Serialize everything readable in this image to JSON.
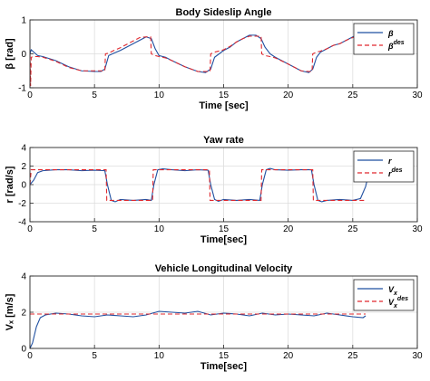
{
  "chart_data": [
    {
      "type": "line",
      "title": "Body Sideslip Angle",
      "xlabel": "Time [sec]",
      "ylabel": "β [rad]",
      "xlim": [
        0,
        30
      ],
      "ylim": [
        -1,
        1
      ],
      "xticks": [
        "0",
        "5",
        "10",
        "15",
        "20",
        "25",
        "30"
      ],
      "yticks": [
        "-1",
        "0",
        "1"
      ],
      "grid": true,
      "legend_position": "top-right",
      "legend": [
        {
          "name": "β",
          "sub": "",
          "sup": ""
        },
        {
          "name": "β",
          "sub": "",
          "sup": "des"
        }
      ],
      "series": [
        {
          "name": "β",
          "color": "#1f4fa0",
          "style": "solid",
          "x": [
            0,
            0.1,
            0.3,
            0.6,
            1.0,
            2.0,
            3.0,
            4.0,
            5.0,
            5.5,
            5.8,
            6.1,
            6.5,
            7.0,
            7.5,
            8.0,
            8.5,
            9.0,
            9.4,
            9.7,
            10.0,
            10.5,
            11.0,
            12.0,
            13.0,
            13.6,
            14.0,
            14.3,
            15.0,
            15.5,
            16.0,
            16.5,
            17.0,
            17.5,
            17.9,
            18.2,
            18.6,
            19.0,
            20.0,
            21.0,
            21.6,
            21.9,
            22.2,
            22.5,
            23.0,
            23.5,
            24.0,
            24.5,
            25.0,
            25.5,
            25.8,
            26.0
          ],
          "y": [
            0.0,
            0.12,
            0.05,
            -0.05,
            -0.08,
            -0.2,
            -0.38,
            -0.5,
            -0.52,
            -0.52,
            -0.45,
            -0.05,
            0.02,
            0.1,
            0.2,
            0.3,
            0.4,
            0.5,
            0.45,
            0.15,
            -0.05,
            -0.1,
            -0.2,
            -0.38,
            -0.52,
            -0.55,
            -0.45,
            -0.1,
            0.1,
            0.2,
            0.35,
            0.45,
            0.55,
            0.55,
            0.45,
            0.2,
            0.0,
            -0.1,
            -0.3,
            -0.5,
            -0.55,
            -0.45,
            -0.1,
            0.05,
            0.15,
            0.25,
            0.3,
            0.4,
            0.5,
            0.6,
            0.5,
            0.05
          ]
        },
        {
          "name": "βdes",
          "color": "#e0282e",
          "style": "dashed",
          "x": [
            0,
            0.05,
            0.1,
            0.3,
            0.6,
            1.0,
            2.0,
            3.0,
            4.0,
            5.0,
            5.5,
            5.8,
            5.85,
            6.1,
            6.5,
            7.0,
            7.5,
            8.0,
            8.5,
            9.0,
            9.35,
            9.4,
            9.7,
            10.0,
            10.5,
            11.0,
            12.0,
            13.0,
            13.6,
            13.95,
            14.0,
            14.3,
            15.0,
            15.5,
            16.0,
            16.5,
            17.0,
            17.5,
            17.9,
            17.95,
            18.2,
            18.6,
            19.0,
            20.0,
            21.0,
            21.6,
            21.85,
            21.9,
            22.2,
            22.5,
            23.0,
            23.5,
            24.0,
            24.5,
            25.0,
            25.5,
            25.8,
            26.0
          ],
          "y": [
            0.0,
            -0.95,
            -0.1,
            -0.08,
            -0.08,
            -0.1,
            -0.22,
            -0.4,
            -0.5,
            -0.5,
            -0.5,
            -0.5,
            0.0,
            0.02,
            0.1,
            0.18,
            0.28,
            0.38,
            0.48,
            0.5,
            0.5,
            0.0,
            -0.05,
            -0.08,
            -0.12,
            -0.2,
            -0.38,
            -0.52,
            -0.52,
            -0.52,
            0.0,
            0.05,
            0.12,
            0.22,
            0.35,
            0.45,
            0.52,
            0.52,
            0.52,
            0.0,
            -0.05,
            -0.08,
            -0.12,
            -0.3,
            -0.5,
            -0.52,
            -0.52,
            0.0,
            0.05,
            0.08,
            0.15,
            0.25,
            0.3,
            0.4,
            0.48,
            0.55,
            0.55,
            0.0
          ]
        }
      ]
    },
    {
      "type": "line",
      "title": "Yaw rate",
      "xlabel": "Time[sec]",
      "ylabel": "r [rad/s]",
      "xlim": [
        0,
        30
      ],
      "ylim": [
        -4,
        4
      ],
      "xticks": [
        "0",
        "5",
        "10",
        "15",
        "20",
        "25",
        "30"
      ],
      "yticks": [
        "-4",
        "-2",
        "0",
        "2",
        "4"
      ],
      "grid": true,
      "legend_position": "top-right",
      "legend": [
        {
          "name": "r",
          "sub": "",
          "sup": ""
        },
        {
          "name": "r",
          "sub": "",
          "sup": "des"
        }
      ],
      "series": [
        {
          "name": "r",
          "color": "#1f4fa0",
          "style": "solid",
          "x": [
            0,
            0.3,
            0.6,
            1.0,
            2.0,
            3.0,
            4.0,
            5.0,
            5.8,
            6.0,
            6.3,
            6.6,
            7.0,
            8.0,
            9.0,
            9.4,
            9.6,
            9.9,
            10.3,
            11.0,
            12.0,
            13.0,
            13.8,
            14.0,
            14.3,
            14.6,
            15.0,
            16.0,
            17.0,
            17.8,
            18.0,
            18.3,
            18.6,
            19.0,
            20.0,
            21.0,
            21.8,
            22.0,
            22.3,
            22.6,
            23.0,
            24.0,
            25.0,
            25.6,
            26.0,
            26.2
          ],
          "y": [
            0.0,
            0.5,
            1.3,
            1.5,
            1.6,
            1.6,
            1.5,
            1.55,
            1.5,
            0.0,
            -1.7,
            -1.85,
            -1.6,
            -1.7,
            -1.6,
            -1.7,
            0.0,
            1.6,
            1.7,
            1.6,
            1.5,
            1.6,
            1.55,
            0.0,
            -1.6,
            -1.8,
            -1.6,
            -1.7,
            -1.6,
            -1.7,
            0.0,
            1.6,
            1.75,
            1.6,
            1.55,
            1.6,
            1.6,
            0.0,
            -1.7,
            -1.85,
            -1.7,
            -1.6,
            -1.7,
            -1.5,
            -0.2,
            1.0
          ]
        },
        {
          "name": "rdes",
          "color": "#e0282e",
          "style": "dashed",
          "x": [
            0,
            0.1,
            1.0,
            2.0,
            3.0,
            4.0,
            5.0,
            5.9,
            5.95,
            7.0,
            8.0,
            9.0,
            9.5,
            9.55,
            11.0,
            12.0,
            13.0,
            13.9,
            13.95,
            15.0,
            16.0,
            17.0,
            17.9,
            17.95,
            19.0,
            20.0,
            21.0,
            21.9,
            21.95,
            23.0,
            24.0,
            25.0,
            26.0
          ],
          "y": [
            0.0,
            1.6,
            1.6,
            1.6,
            1.6,
            1.6,
            1.6,
            1.6,
            -1.7,
            -1.7,
            -1.7,
            -1.7,
            -1.7,
            1.6,
            1.6,
            1.6,
            1.6,
            1.6,
            -1.7,
            -1.7,
            -1.7,
            -1.7,
            -1.7,
            1.6,
            1.6,
            1.6,
            1.6,
            1.6,
            -1.7,
            -1.7,
            -1.7,
            -1.7,
            -1.7
          ]
        }
      ]
    },
    {
      "type": "line",
      "title": "Vehicle Longitudinal Velocity",
      "xlabel": "Time[sec]",
      "ylabel": "Vₓ [m/s]",
      "xlim": [
        0,
        30
      ],
      "ylim": [
        0,
        4
      ],
      "xticks": [
        "0",
        "5",
        "10",
        "15",
        "20",
        "25",
        "30"
      ],
      "yticks": [
        "0",
        "2",
        "4"
      ],
      "grid": true,
      "legend_position": "top-right",
      "legend": [
        {
          "name": "V",
          "sub": "x",
          "sup": ""
        },
        {
          "name": "V",
          "sub": "x",
          "sup": "des"
        }
      ],
      "series": [
        {
          "name": "Vx",
          "color": "#1f4fa0",
          "style": "solid",
          "x": [
            0,
            0.2,
            0.5,
            0.8,
            1.2,
            2.0,
            3.0,
            4.0,
            5.0,
            6.0,
            7.0,
            8.0,
            9.0,
            10.0,
            11.0,
            12.0,
            13.0,
            14.0,
            15.0,
            16.0,
            17.0,
            18.0,
            19.0,
            20.0,
            21.0,
            22.0,
            23.0,
            24.0,
            25.0,
            25.8,
            26.0
          ],
          "y": [
            0.0,
            0.3,
            1.2,
            1.7,
            1.85,
            1.95,
            1.9,
            1.8,
            1.75,
            1.85,
            1.8,
            1.75,
            1.85,
            2.05,
            2.0,
            1.95,
            2.05,
            1.85,
            1.95,
            1.9,
            1.8,
            1.95,
            1.85,
            1.9,
            1.85,
            1.8,
            1.95,
            1.85,
            1.75,
            1.7,
            1.8
          ]
        },
        {
          "name": "Vxdes",
          "color": "#e0282e",
          "style": "dashed",
          "x": [
            0,
            2,
            4,
            6,
            8,
            10,
            12,
            14,
            16,
            18,
            20,
            22,
            24,
            26
          ],
          "y": [
            1.9,
            1.9,
            1.9,
            1.9,
            1.9,
            1.9,
            1.9,
            1.9,
            1.9,
            1.9,
            1.9,
            1.9,
            1.9,
            1.9
          ]
        }
      ]
    }
  ]
}
